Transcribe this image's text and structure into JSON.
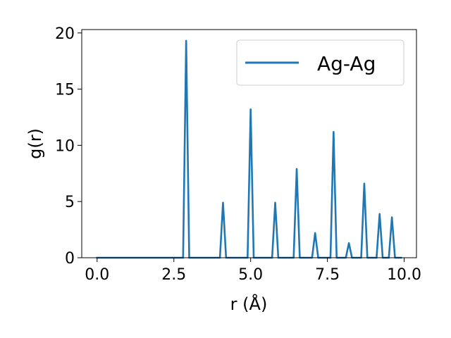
{
  "chart_data": {
    "type": "line",
    "title": "",
    "xlabel": "r (Å)",
    "ylabel": "g(r)",
    "xlim": [
      -0.5,
      10.4
    ],
    "ylim": [
      0,
      20.3
    ],
    "xticks": [
      0.0,
      2.5,
      5.0,
      7.5,
      10.0
    ],
    "xtick_labels": [
      "0.0",
      "2.5",
      "5.0",
      "7.5",
      "10.0"
    ],
    "yticks": [
      0,
      5,
      10,
      15,
      20
    ],
    "ytick_labels": [
      "0",
      "5",
      "10",
      "15",
      "20"
    ],
    "grid": false,
    "legend_position": "top-right",
    "series": [
      {
        "name": "Ag-Ag",
        "color": "#1f77b4",
        "x": [
          0.0,
          2.8,
          2.9,
          3.0,
          4.0,
          4.1,
          4.2,
          4.9,
          5.0,
          5.1,
          5.7,
          5.8,
          5.9,
          6.4,
          6.5,
          6.6,
          7.0,
          7.1,
          7.2,
          7.6,
          7.7,
          7.8,
          8.1,
          8.2,
          8.3,
          8.6,
          8.7,
          8.8,
          9.1,
          9.2,
          9.3,
          9.5,
          9.6,
          9.7,
          9.9
        ],
        "y": [
          0,
          0,
          19.3,
          0,
          0,
          4.9,
          0,
          0,
          13.2,
          0,
          0,
          4.9,
          0,
          0,
          7.9,
          0,
          0,
          2.2,
          0,
          0,
          11.2,
          0,
          0,
          1.3,
          0,
          0,
          6.6,
          0,
          0,
          3.9,
          0,
          0,
          3.6,
          0,
          0
        ]
      }
    ]
  }
}
